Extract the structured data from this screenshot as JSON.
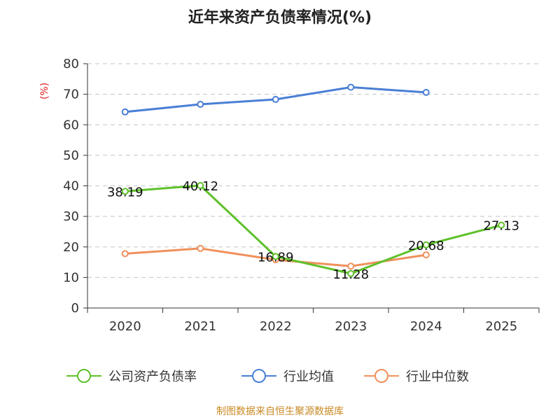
{
  "chart_data": {
    "type": "line",
    "title": "近年来资产负债率情况(%)",
    "ylabel": "(%)",
    "xlabel": "",
    "ylim": [
      0,
      80
    ],
    "yticks": [
      0,
      10,
      20,
      30,
      40,
      50,
      60,
      70,
      80
    ],
    "categories": [
      "2020",
      "2021",
      "2022",
      "2023",
      "2024",
      "2025"
    ],
    "grid": true,
    "legend_position": "bottom",
    "series": [
      {
        "name": "公司资产负债率",
        "color": "#5ec12a",
        "values": [
          38.19,
          40.12,
          16.89,
          11.28,
          20.68,
          27.13
        ],
        "labels": [
          "38.19",
          "40.12",
          "16.89",
          "11.28",
          "20.68",
          "27.13"
        ]
      },
      {
        "name": "行业均值",
        "color": "#4a7fd6",
        "values": [
          64.2,
          66.7,
          68.3,
          72.3,
          70.6,
          null
        ]
      },
      {
        "name": "行业中位数",
        "color": "#f0905c",
        "values": [
          17.8,
          19.5,
          15.8,
          13.7,
          17.4,
          null
        ]
      }
    ],
    "source": "制图数据来自恒生聚源数据库"
  }
}
